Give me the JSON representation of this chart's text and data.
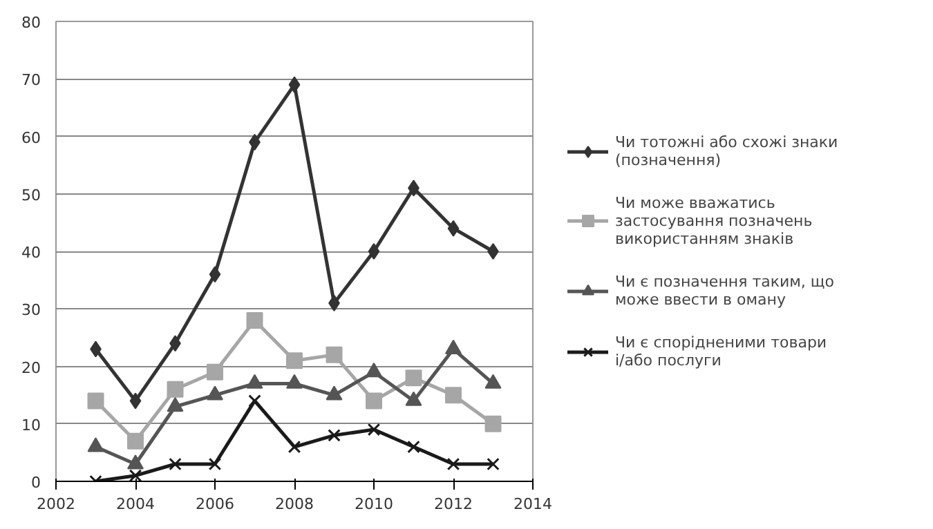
{
  "chart_data": {
    "type": "line",
    "x": [
      2003,
      2004,
      2005,
      2006,
      2007,
      2008,
      2009,
      2010,
      2011,
      2012,
      2013
    ],
    "xlim": [
      2002,
      2014
    ],
    "xticks": [
      2002,
      2004,
      2006,
      2008,
      2010,
      2012,
      2014
    ],
    "ylim": [
      0,
      80
    ],
    "yticks": [
      0,
      10,
      20,
      30,
      40,
      50,
      60,
      70,
      80
    ],
    "grid": "y",
    "legend": "right",
    "series": [
      {
        "name": "Чи тотожні або схожі знаки (позначення)",
        "color": "#333333",
        "marker": "diamond",
        "values": [
          23,
          14,
          24,
          36,
          59,
          69,
          31,
          40,
          51,
          44,
          40
        ]
      },
      {
        "name": "Чи може вважатись застосування позначень використанням знаків",
        "color": "#a6a6a6",
        "marker": "square",
        "values": [
          14,
          7,
          16,
          19,
          28,
          21,
          22,
          14,
          18,
          15,
          10
        ]
      },
      {
        "name": "Чи є позначення таким, що може ввести в оману",
        "color": "#555555",
        "marker": "triangle",
        "values": [
          6,
          3,
          13,
          15,
          17,
          17,
          15,
          19,
          14,
          23,
          17
        ]
      },
      {
        "name": "Чи є спорідненими товари і/або послуги",
        "color": "#1a1a1a",
        "marker": "cross",
        "values": [
          0,
          1,
          3,
          3,
          14,
          6,
          8,
          9,
          6,
          3,
          3
        ]
      }
    ]
  }
}
